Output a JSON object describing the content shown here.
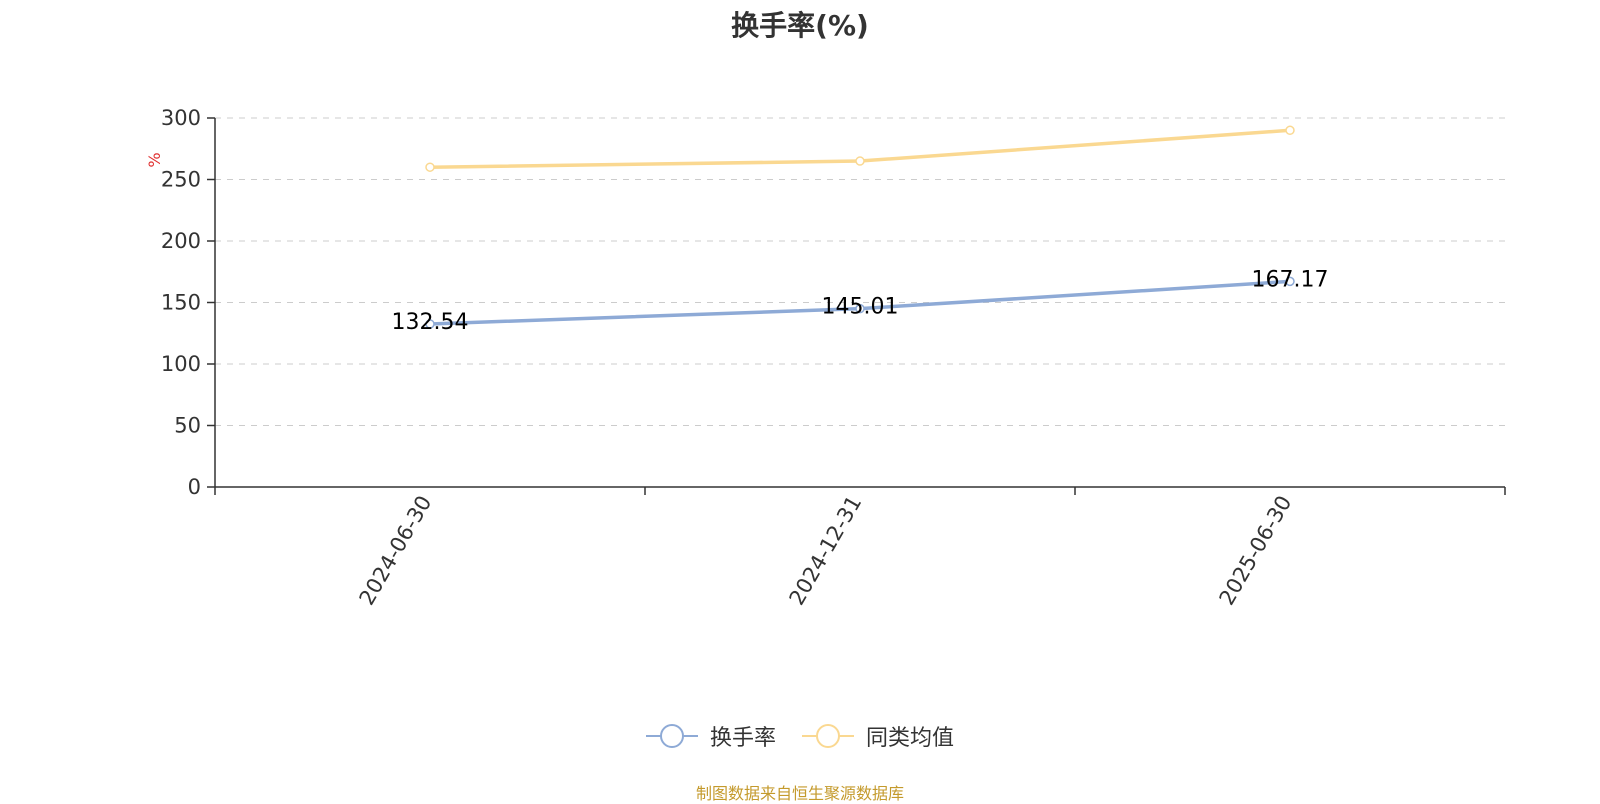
{
  "chart_data": {
    "type": "line",
    "title": "换手率(%)",
    "ylabel": "%",
    "xlabel": "",
    "categories": [
      "2024-06-30",
      "2024-12-31",
      "2025-06-30"
    ],
    "ylim": [
      0,
      300
    ],
    "yticks": [
      0,
      50,
      100,
      150,
      200,
      250,
      300
    ],
    "grid": true,
    "legend_position": "bottom",
    "series": [
      {
        "name": "换手率",
        "values": [
          132.54,
          145.01,
          167.17
        ],
        "color": "#8eaad6",
        "data_labels": [
          "132.54",
          "145.01",
          "167.17"
        ]
      },
      {
        "name": "同类均值",
        "values": [
          260,
          265,
          290
        ],
        "color": "#fad891"
      }
    ]
  },
  "source_text": "制图数据来自恒生聚源数据库"
}
